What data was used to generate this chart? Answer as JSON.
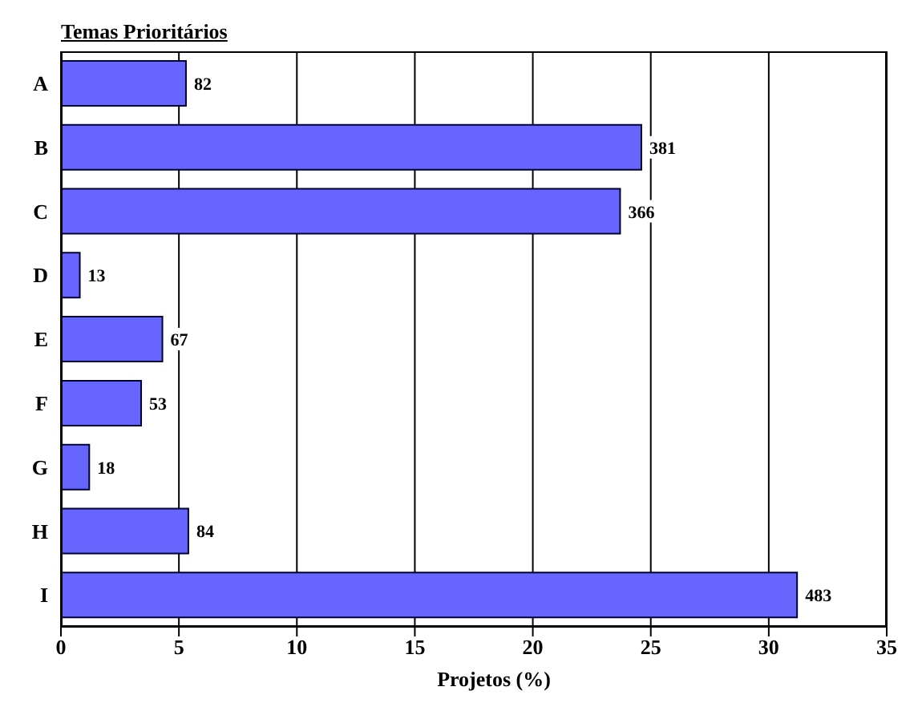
{
  "chart_data": {
    "type": "bar",
    "orientation": "horizontal",
    "title": "Temas Prioritários",
    "xlabel": "Projetos (%)",
    "categories": [
      "A",
      "B",
      "C",
      "D",
      "E",
      "F",
      "G",
      "H",
      "I"
    ],
    "values": [
      5.3,
      24.6,
      23.7,
      0.8,
      4.3,
      3.4,
      1.2,
      5.4,
      31.2
    ],
    "annotations": [
      {
        "text": "82",
        "x": 5.3,
        "y": "A"
      },
      {
        "text": "381",
        "x": 24.6,
        "y": "B"
      },
      {
        "text": "366",
        "x": 23.7,
        "y": "C"
      },
      {
        "text": "13",
        "x": 0.8,
        "y": "D"
      },
      {
        "text": "67",
        "x": 4.3,
        "y": "E"
      },
      {
        "text": "53",
        "x": 3.4,
        "y": "F"
      },
      {
        "text": "18",
        "x": 1.2,
        "y": "G"
      },
      {
        "text": "84",
        "x": 5.4,
        "y": "H"
      },
      {
        "text": "483",
        "x": 31.2,
        "y": "I"
      }
    ],
    "color": "#6666ff",
    "xlim": [
      0,
      35
    ],
    "xticks": [
      0,
      5,
      10,
      15,
      20,
      25,
      30,
      35
    ],
    "grid": "x"
  }
}
